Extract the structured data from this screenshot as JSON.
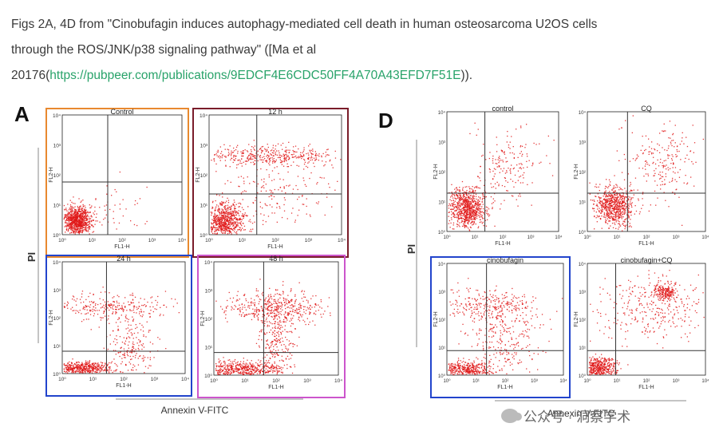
{
  "caption": {
    "line1": "Figs 2A, 4D from \"Cinobufagin induces autophagy-mediated cell death in human osteosarcoma U2OS cells",
    "line2": "through the ROS/JNK/p38 signaling pathway\" ([Ma et al",
    "line3_prefix": "20176(",
    "link": "https://pubpeer.com/publications/9EDCF4E6CDC50FF4A70A43EFD7F51E",
    "line3_suffix": "))."
  },
  "panel_a": {
    "letter": "A",
    "y_label": "PI",
    "x_label": "Annexin V-FITC",
    "plots": [
      {
        "title": "Control",
        "frame": "#e8892f"
      },
      {
        "title": "12 h",
        "frame": "#7a1c2a"
      },
      {
        "title": "24 h",
        "frame": "#2244cc"
      },
      {
        "title": "48 h",
        "frame": "#cc55cc"
      }
    ]
  },
  "panel_d": {
    "letter": "D",
    "y_label": "PI",
    "x_label": "Annexin V-FITC",
    "plots": [
      {
        "title": "control",
        "frame": "none"
      },
      {
        "title": "CQ",
        "frame": "none"
      },
      {
        "title": "cinobufagin",
        "frame": "#2244cc"
      },
      {
        "title": "cinobufagin+CQ",
        "frame": "none"
      }
    ]
  },
  "axis": {
    "y_axis_title": "FL2-H",
    "x_axis_title": "FL1-H",
    "ticks": [
      "10⁰",
      "10¹",
      "10²",
      "10³",
      "10⁴"
    ]
  },
  "colors": {
    "dots": "#e01818",
    "gate": "#333333",
    "link": "#29a36a"
  },
  "watermark": {
    "text": "公众号 · 洞察学术"
  }
}
